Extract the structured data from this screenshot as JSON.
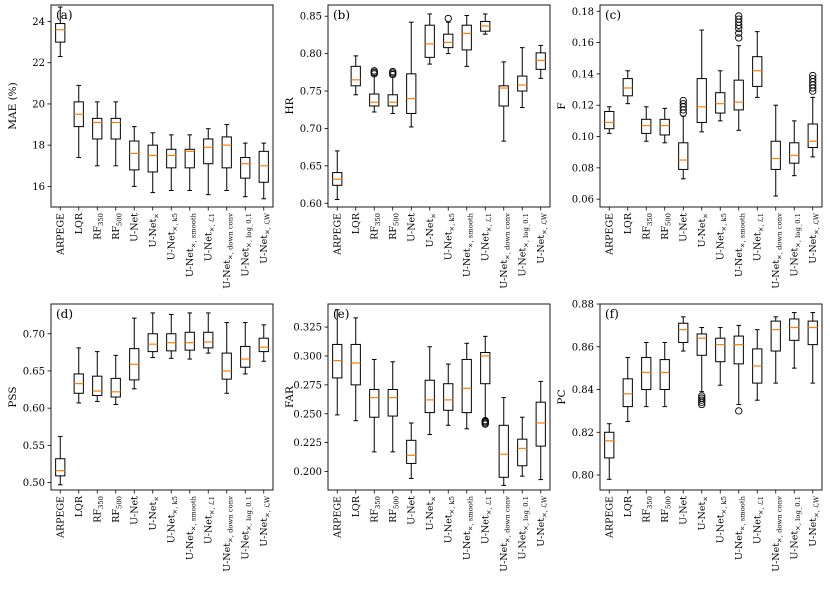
{
  "figure": {
    "categories": [
      "ARPEGE",
      "LQR",
      "RF_350",
      "RF_500",
      "U-Net",
      "U-Net_×",
      "U-Net_×, k5",
      "U-Net_×, smooth",
      "U-Net_×, ℒ1",
      "U-Net_×, down conv",
      "U-Net_×, log_0.1",
      "U-Net_×, ℒW"
    ],
    "colors": {
      "box": "#000000",
      "median": "#ff7f0e"
    }
  },
  "chart_data": [
    {
      "type": "boxplot",
      "panel": "(a)",
      "ylabel": "MAE (%)",
      "ylim": [
        15.0,
        24.8
      ],
      "yticks": [
        16,
        18,
        20,
        22,
        24
      ],
      "boxes": [
        {
          "whislo": 22.3,
          "q1": 23.0,
          "med": 23.6,
          "q3": 23.9,
          "whishi": 24.7,
          "fliers": []
        },
        {
          "whislo": 17.4,
          "q1": 18.9,
          "med": 19.5,
          "q3": 20.1,
          "whishi": 20.9,
          "fliers": []
        },
        {
          "whislo": 17.0,
          "q1": 18.3,
          "med": 19.1,
          "q3": 19.3,
          "whishi": 20.1,
          "fliers": []
        },
        {
          "whislo": 17.0,
          "q1": 18.3,
          "med": 19.1,
          "q3": 19.3,
          "whishi": 20.1,
          "fliers": []
        },
        {
          "whislo": 16.0,
          "q1": 16.8,
          "med": 17.6,
          "q3": 18.2,
          "whishi": 18.9,
          "fliers": []
        },
        {
          "whislo": 15.7,
          "q1": 16.7,
          "med": 17.5,
          "q3": 18.0,
          "whishi": 18.6,
          "fliers": []
        },
        {
          "whislo": 15.8,
          "q1": 16.9,
          "med": 17.5,
          "q3": 17.8,
          "whishi": 18.5,
          "fliers": []
        },
        {
          "whislo": 15.8,
          "q1": 16.9,
          "med": 17.7,
          "q3": 17.8,
          "whishi": 18.5,
          "fliers": []
        },
        {
          "whislo": 15.6,
          "q1": 17.1,
          "med": 17.9,
          "q3": 18.3,
          "whishi": 18.8,
          "fliers": []
        },
        {
          "whislo": 15.8,
          "q1": 16.9,
          "med": 18.0,
          "q3": 18.4,
          "whishi": 19.0,
          "fliers": []
        },
        {
          "whislo": 15.5,
          "q1": 16.4,
          "med": 17.1,
          "q3": 17.4,
          "whishi": 18.1,
          "fliers": []
        },
        {
          "whislo": 15.4,
          "q1": 16.2,
          "med": 17.0,
          "q3": 17.7,
          "whishi": 18.1,
          "fliers": []
        }
      ]
    },
    {
      "type": "boxplot",
      "panel": "(b)",
      "ylabel": "HR",
      "ylim": [
        0.595,
        0.865
      ],
      "yticks": [
        0.6,
        0.65,
        0.7,
        0.75,
        0.8,
        0.85
      ],
      "boxes": [
        {
          "whislo": 0.605,
          "q1": 0.624,
          "med": 0.632,
          "q3": 0.641,
          "whishi": 0.67,
          "fliers": []
        },
        {
          "whislo": 0.745,
          "q1": 0.757,
          "med": 0.765,
          "q3": 0.783,
          "whishi": 0.797,
          "fliers": []
        },
        {
          "whislo": 0.722,
          "q1": 0.73,
          "med": 0.735,
          "q3": 0.746,
          "whishi": 0.771,
          "fliers": [
            0.773,
            0.775,
            0.777
          ]
        },
        {
          "whislo": 0.72,
          "q1": 0.73,
          "med": 0.735,
          "q3": 0.745,
          "whishi": 0.77,
          "fliers": [
            0.772,
            0.774,
            0.776
          ]
        },
        {
          "whislo": 0.702,
          "q1": 0.72,
          "med": 0.74,
          "q3": 0.773,
          "whishi": 0.842,
          "fliers": []
        },
        {
          "whislo": 0.786,
          "q1": 0.795,
          "med": 0.813,
          "q3": 0.838,
          "whishi": 0.853,
          "fliers": []
        },
        {
          "whislo": 0.8,
          "q1": 0.808,
          "med": 0.815,
          "q3": 0.826,
          "whishi": 0.842,
          "fliers": [
            0.847
          ]
        },
        {
          "whislo": 0.783,
          "q1": 0.805,
          "med": 0.827,
          "q3": 0.838,
          "whishi": 0.851,
          "fliers": []
        },
        {
          "whislo": 0.826,
          "q1": 0.83,
          "med": 0.837,
          "q3": 0.843,
          "whishi": 0.853,
          "fliers": []
        },
        {
          "whislo": 0.683,
          "q1": 0.73,
          "med": 0.754,
          "q3": 0.757,
          "whishi": 0.789,
          "fliers": []
        },
        {
          "whislo": 0.728,
          "q1": 0.75,
          "med": 0.758,
          "q3": 0.77,
          "whishi": 0.808,
          "fliers": []
        },
        {
          "whislo": 0.767,
          "q1": 0.779,
          "med": 0.791,
          "q3": 0.801,
          "whishi": 0.811,
          "fliers": []
        }
      ]
    },
    {
      "type": "boxplot",
      "panel": "(c)",
      "ylabel": "F",
      "ylim": [
        0.055,
        0.184
      ],
      "yticks": [
        0.06,
        0.08,
        0.1,
        0.12,
        0.14,
        0.16,
        0.18
      ],
      "boxes": [
        {
          "whislo": 0.102,
          "q1": 0.105,
          "med": 0.109,
          "q3": 0.116,
          "whishi": 0.119,
          "fliers": []
        },
        {
          "whislo": 0.121,
          "q1": 0.126,
          "med": 0.131,
          "q3": 0.137,
          "whishi": 0.142,
          "fliers": []
        },
        {
          "whislo": 0.097,
          "q1": 0.102,
          "med": 0.107,
          "q3": 0.111,
          "whishi": 0.119,
          "fliers": []
        },
        {
          "whislo": 0.096,
          "q1": 0.101,
          "med": 0.107,
          "q3": 0.111,
          "whishi": 0.118,
          "fliers": []
        },
        {
          "whislo": 0.073,
          "q1": 0.079,
          "med": 0.085,
          "q3": 0.096,
          "whishi": 0.113,
          "fliers": [
            0.115,
            0.117,
            0.119,
            0.121,
            0.123
          ]
        },
        {
          "whislo": 0.103,
          "q1": 0.109,
          "med": 0.119,
          "q3": 0.137,
          "whishi": 0.168,
          "fliers": []
        },
        {
          "whislo": 0.11,
          "q1": 0.115,
          "med": 0.121,
          "q3": 0.128,
          "whishi": 0.142,
          "fliers": []
        },
        {
          "whislo": 0.104,
          "q1": 0.117,
          "med": 0.122,
          "q3": 0.136,
          "whishi": 0.158,
          "fliers": [
            0.163,
            0.166,
            0.169,
            0.171,
            0.173,
            0.175,
            0.177
          ]
        },
        {
          "whislo": 0.125,
          "q1": 0.132,
          "med": 0.142,
          "q3": 0.151,
          "whishi": 0.167,
          "fliers": []
        },
        {
          "whislo": 0.062,
          "q1": 0.079,
          "med": 0.086,
          "q3": 0.097,
          "whishi": 0.12,
          "fliers": []
        },
        {
          "whislo": 0.075,
          "q1": 0.083,
          "med": 0.088,
          "q3": 0.096,
          "whishi": 0.11,
          "fliers": []
        },
        {
          "whislo": 0.087,
          "q1": 0.093,
          "med": 0.097,
          "q3": 0.108,
          "whishi": 0.125,
          "fliers": [
            0.129,
            0.131,
            0.133,
            0.135,
            0.137,
            0.139
          ]
        }
      ]
    },
    {
      "type": "boxplot",
      "panel": "(d)",
      "ylabel": "PSS",
      "ylim": [
        0.49,
        0.74
      ],
      "yticks": [
        0.5,
        0.55,
        0.6,
        0.65,
        0.7
      ],
      "boxes": [
        {
          "whislo": 0.497,
          "q1": 0.509,
          "med": 0.516,
          "q3": 0.532,
          "whishi": 0.562,
          "fliers": []
        },
        {
          "whislo": 0.607,
          "q1": 0.62,
          "med": 0.633,
          "q3": 0.646,
          "whishi": 0.681,
          "fliers": []
        },
        {
          "whislo": 0.609,
          "q1": 0.617,
          "med": 0.623,
          "q3": 0.643,
          "whishi": 0.676,
          "fliers": []
        },
        {
          "whislo": 0.605,
          "q1": 0.615,
          "med": 0.622,
          "q3": 0.64,
          "whishi": 0.671,
          "fliers": []
        },
        {
          "whislo": 0.626,
          "q1": 0.638,
          "med": 0.659,
          "q3": 0.68,
          "whishi": 0.721,
          "fliers": []
        },
        {
          "whislo": 0.668,
          "q1": 0.676,
          "med": 0.686,
          "q3": 0.7,
          "whishi": 0.728,
          "fliers": []
        },
        {
          "whislo": 0.667,
          "q1": 0.677,
          "med": 0.688,
          "q3": 0.7,
          "whishi": 0.726,
          "fliers": []
        },
        {
          "whislo": 0.666,
          "q1": 0.678,
          "med": 0.688,
          "q3": 0.702,
          "whishi": 0.728,
          "fliers": []
        },
        {
          "whislo": 0.674,
          "q1": 0.681,
          "med": 0.689,
          "q3": 0.702,
          "whishi": 0.728,
          "fliers": []
        },
        {
          "whislo": 0.62,
          "q1": 0.639,
          "med": 0.65,
          "q3": 0.674,
          "whishi": 0.715,
          "fliers": []
        },
        {
          "whislo": 0.646,
          "q1": 0.655,
          "med": 0.666,
          "q3": 0.683,
          "whishi": 0.715,
          "fliers": []
        },
        {
          "whislo": 0.663,
          "q1": 0.676,
          "med": 0.682,
          "q3": 0.694,
          "whishi": 0.712,
          "fliers": []
        }
      ]
    },
    {
      "type": "boxplot",
      "panel": "(e)",
      "ylabel": "FAR",
      "ylim": [
        0.184,
        0.345
      ],
      "yticks": [
        0.2,
        0.225,
        0.25,
        0.275,
        0.3,
        0.325
      ],
      "boxes": [
        {
          "whislo": 0.249,
          "q1": 0.281,
          "med": 0.296,
          "q3": 0.31,
          "whishi": 0.34,
          "fliers": []
        },
        {
          "whislo": 0.244,
          "q1": 0.275,
          "med": 0.294,
          "q3": 0.31,
          "whishi": 0.333,
          "fliers": []
        },
        {
          "whislo": 0.217,
          "q1": 0.247,
          "med": 0.264,
          "q3": 0.271,
          "whishi": 0.297,
          "fliers": []
        },
        {
          "whislo": 0.217,
          "q1": 0.248,
          "med": 0.264,
          "q3": 0.271,
          "whishi": 0.295,
          "fliers": []
        },
        {
          "whislo": 0.194,
          "q1": 0.207,
          "med": 0.214,
          "q3": 0.227,
          "whishi": 0.242,
          "fliers": []
        },
        {
          "whislo": 0.232,
          "q1": 0.251,
          "med": 0.262,
          "q3": 0.279,
          "whishi": 0.308,
          "fliers": []
        },
        {
          "whislo": 0.24,
          "q1": 0.253,
          "med": 0.262,
          "q3": 0.276,
          "whishi": 0.293,
          "fliers": []
        },
        {
          "whislo": 0.237,
          "q1": 0.251,
          "med": 0.272,
          "q3": 0.297,
          "whishi": 0.311,
          "fliers": []
        },
        {
          "whislo": 0.246,
          "q1": 0.276,
          "med": 0.3,
          "q3": 0.303,
          "whishi": 0.317,
          "fliers": [
            0.241,
            0.242,
            0.243,
            0.244
          ]
        },
        {
          "whislo": 0.188,
          "q1": 0.195,
          "med": 0.215,
          "q3": 0.24,
          "whishi": 0.264,
          "fliers": []
        },
        {
          "whislo": 0.196,
          "q1": 0.205,
          "med": 0.22,
          "q3": 0.228,
          "whishi": 0.247,
          "fliers": []
        },
        {
          "whislo": 0.193,
          "q1": 0.222,
          "med": 0.242,
          "q3": 0.26,
          "whishi": 0.278,
          "fliers": []
        }
      ]
    },
    {
      "type": "boxplot",
      "panel": "(f)",
      "ylabel": "PC",
      "ylim": [
        0.793,
        0.88
      ],
      "yticks": [
        0.8,
        0.82,
        0.84,
        0.86,
        0.88
      ],
      "boxes": [
        {
          "whislo": 0.798,
          "q1": 0.808,
          "med": 0.816,
          "q3": 0.82,
          "whishi": 0.824,
          "fliers": []
        },
        {
          "whislo": 0.825,
          "q1": 0.832,
          "med": 0.838,
          "q3": 0.845,
          "whishi": 0.855,
          "fliers": []
        },
        {
          "whislo": 0.832,
          "q1": 0.84,
          "med": 0.848,
          "q3": 0.855,
          "whishi": 0.862,
          "fliers": []
        },
        {
          "whislo": 0.832,
          "q1": 0.84,
          "med": 0.848,
          "q3": 0.854,
          "whishi": 0.862,
          "fliers": []
        },
        {
          "whislo": 0.858,
          "q1": 0.862,
          "med": 0.868,
          "q3": 0.871,
          "whishi": 0.874,
          "fliers": []
        },
        {
          "whislo": 0.839,
          "q1": 0.856,
          "med": 0.864,
          "q3": 0.866,
          "whishi": 0.869,
          "fliers": [
            0.833,
            0.834,
            0.835,
            0.836,
            0.837
          ]
        },
        {
          "whislo": 0.842,
          "q1": 0.853,
          "med": 0.861,
          "q3": 0.864,
          "whishi": 0.869,
          "fliers": []
        },
        {
          "whislo": 0.833,
          "q1": 0.852,
          "med": 0.861,
          "q3": 0.865,
          "whishi": 0.87,
          "fliers": [
            0.83
          ]
        },
        {
          "whislo": 0.835,
          "q1": 0.843,
          "med": 0.851,
          "q3": 0.859,
          "whishi": 0.868,
          "fliers": []
        },
        {
          "whislo": 0.843,
          "q1": 0.858,
          "med": 0.868,
          "q3": 0.872,
          "whishi": 0.874,
          "fliers": []
        },
        {
          "whislo": 0.85,
          "q1": 0.863,
          "med": 0.869,
          "q3": 0.873,
          "whishi": 0.876,
          "fliers": []
        },
        {
          "whislo": 0.843,
          "q1": 0.861,
          "med": 0.869,
          "q3": 0.872,
          "whishi": 0.876,
          "fliers": []
        }
      ]
    }
  ]
}
